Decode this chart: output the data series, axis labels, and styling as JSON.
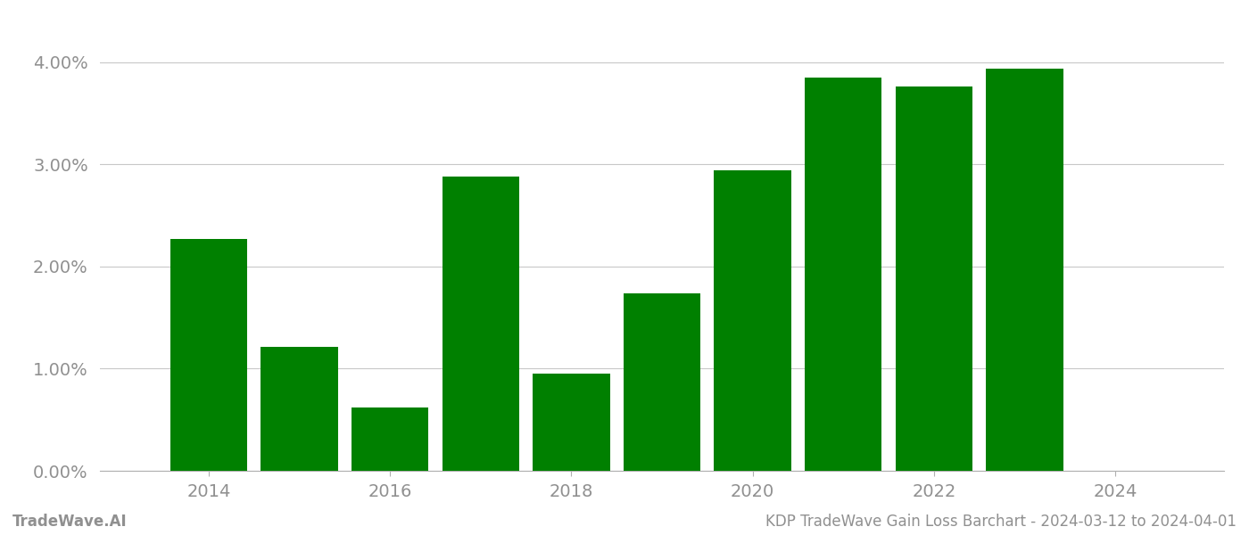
{
  "years": [
    2014,
    2015,
    2016,
    2017,
    2018,
    2019,
    2020,
    2021,
    2022,
    2023
  ],
  "values": [
    0.0227,
    0.0121,
    0.0062,
    0.0288,
    0.0095,
    0.0174,
    0.0294,
    0.0385,
    0.0376,
    0.0394
  ],
  "bar_color": "#008000",
  "background_color": "#ffffff",
  "grid_color": "#c8c8c8",
  "ylim": [
    0,
    0.044
  ],
  "yticks": [
    0.0,
    0.01,
    0.02,
    0.03,
    0.04
  ],
  "ytick_labels": [
    "0.00%",
    "1.00%",
    "2.00%",
    "3.00%",
    "4.00%"
  ],
  "xticks": [
    2014,
    2016,
    2018,
    2020,
    2022,
    2024
  ],
  "xtick_labels": [
    "2014",
    "2016",
    "2018",
    "2020",
    "2022",
    "2024"
  ],
  "footer_left": "TradeWave.AI",
  "footer_right": "KDP TradeWave Gain Loss Barchart - 2024-03-12 to 2024-04-01",
  "tick_label_color": "#909090",
  "footer_color": "#909090",
  "tick_fontsize": 14,
  "footer_fontsize": 12,
  "bar_width": 0.85,
  "xlim_left": 2012.8,
  "xlim_right": 2025.2
}
